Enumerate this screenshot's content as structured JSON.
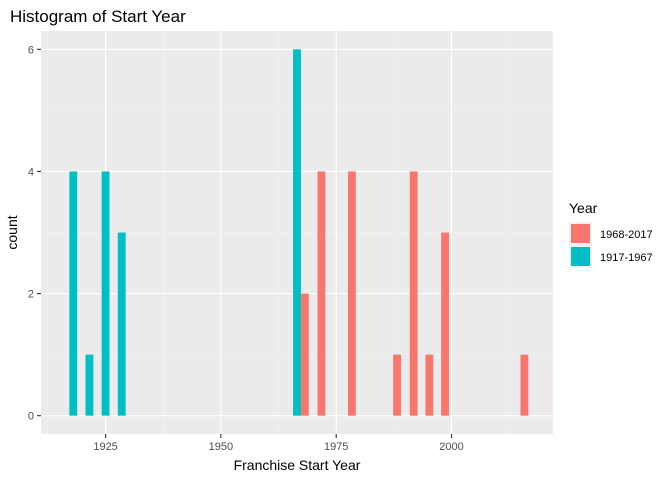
{
  "chart_data": {
    "type": "bar",
    "title": "Histogram of Start Year",
    "xlabel": "Franchise Start Year",
    "ylabel": "count",
    "xlim": [
      1911,
      2022
    ],
    "ylim": [
      -0.3,
      6.3
    ],
    "x_ticks": [
      1925,
      1950,
      1975,
      2000
    ],
    "x_tick_labels": [
      "1925",
      "1950",
      "1975",
      "2000"
    ],
    "y_ticks": [
      0,
      2,
      4,
      6
    ],
    "y_tick_labels": [
      "0",
      "2",
      "4",
      "6"
    ],
    "grid": true,
    "legend": {
      "title": "Year",
      "placement": "right",
      "entries": [
        {
          "label": "1968-2017",
          "color": "#F8766D"
        },
        {
          "label": "1917-1967",
          "color": "#00BFC4"
        }
      ]
    },
    "series": [
      {
        "name": "1968-2017",
        "color": "#F8766D",
        "points": [
          {
            "x": 1968.2,
            "y": 2
          },
          {
            "x": 1971.8,
            "y": 4
          },
          {
            "x": 1978.4,
            "y": 4
          },
          {
            "x": 1988.2,
            "y": 1
          },
          {
            "x": 1991.8,
            "y": 4
          },
          {
            "x": 1995.2,
            "y": 1
          },
          {
            "x": 1998.6,
            "y": 3
          },
          {
            "x": 2015.8,
            "y": 1
          }
        ]
      },
      {
        "name": "1917-1967",
        "color": "#00BFC4",
        "points": [
          {
            "x": 1918.0,
            "y": 4
          },
          {
            "x": 1921.5,
            "y": 1
          },
          {
            "x": 1925.0,
            "y": 4
          },
          {
            "x": 1928.5,
            "y": 3
          },
          {
            "x": 1966.5,
            "y": 6
          }
        ]
      }
    ]
  }
}
